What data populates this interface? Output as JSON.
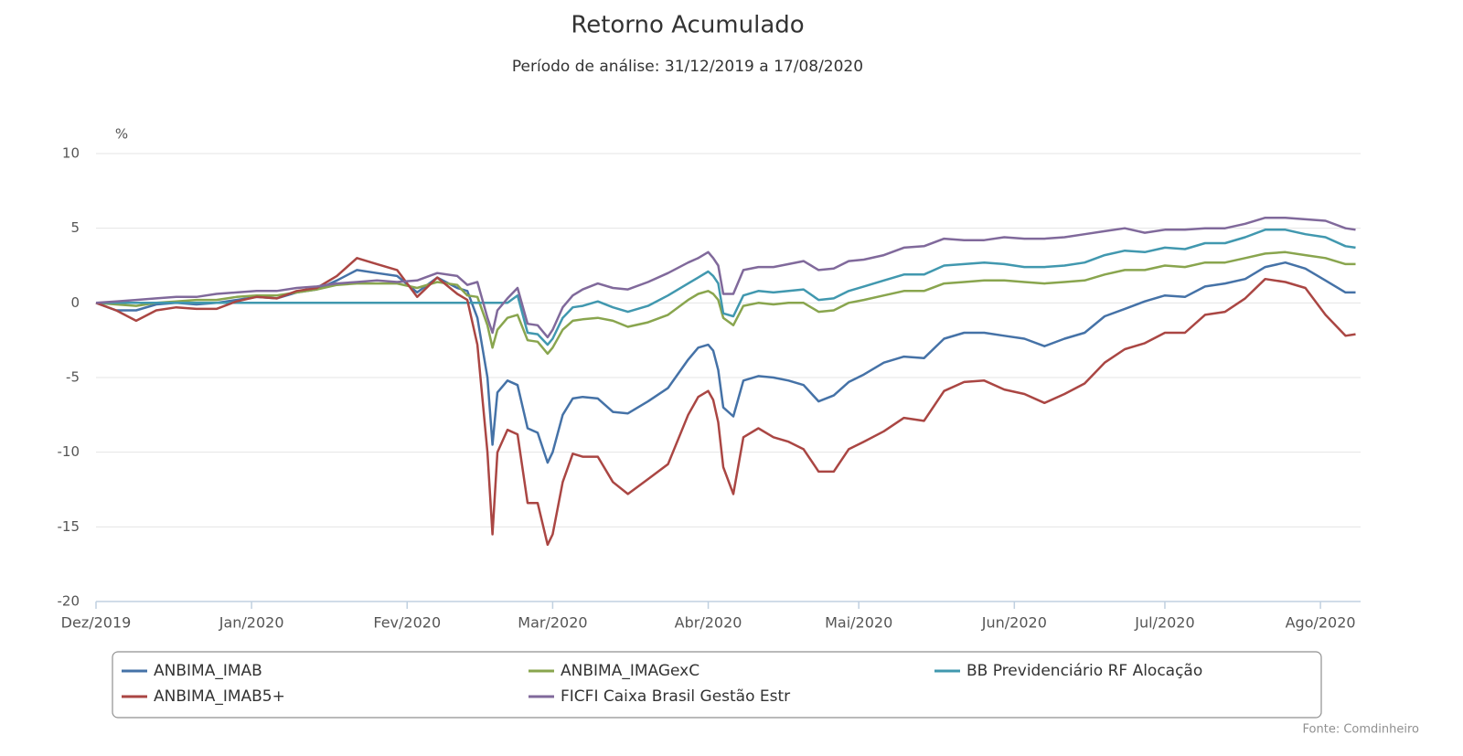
{
  "chart_data": {
    "type": "line",
    "title": "Retorno Acumulado",
    "subtitle": "Período de análise: 31/12/2019 a 17/08/2020",
    "y_label": "%",
    "source": "Fonte: Comdinheiro",
    "x": [
      0,
      4,
      8,
      12,
      16,
      20,
      24,
      28,
      32,
      36,
      40,
      44,
      48,
      52,
      56,
      60,
      64,
      68,
      72,
      74,
      76,
      78,
      79,
      80,
      82,
      84,
      86,
      88,
      90,
      91,
      93,
      95,
      97,
      100,
      103,
      106,
      110,
      114,
      118,
      120,
      122,
      123,
      124,
      125,
      127,
      129,
      132,
      135,
      138,
      141,
      144,
      147,
      150,
      153,
      157,
      161,
      165,
      169,
      173,
      177,
      181,
      185,
      189,
      193,
      197,
      201,
      205,
      209,
      213,
      217,
      221,
      225,
      229,
      233,
      237,
      241,
      245,
      249,
      251
    ],
    "xlim": [
      0,
      252
    ],
    "xticks": [
      {
        "value": 0,
        "label": "Dez/2019"
      },
      {
        "value": 31,
        "label": "Jan/2020"
      },
      {
        "value": 62,
        "label": "Fev/2020"
      },
      {
        "value": 91,
        "label": "Mar/2020"
      },
      {
        "value": 122,
        "label": "Abr/2020"
      },
      {
        "value": 152,
        "label": "Mai/2020"
      },
      {
        "value": 183,
        "label": "Jun/2020"
      },
      {
        "value": 213,
        "label": "Jul/2020"
      },
      {
        "value": 244,
        "label": "Ago/2020"
      }
    ],
    "ylim": [
      -20,
      10
    ],
    "yticks": [
      10,
      5,
      0,
      -5,
      -10,
      -15,
      -20
    ],
    "grid": true,
    "legend": "bottom",
    "series": [
      {
        "name": "ANBIMA_IMAB",
        "color": "#4572a7",
        "values": [
          0,
          -0.5,
          -0.5,
          -0.1,
          0,
          -0.1,
          0,
          0.2,
          0.4,
          0.3,
          0.7,
          0.9,
          1.5,
          2.2,
          2.0,
          1.8,
          0.7,
          1.7,
          1.0,
          0.8,
          -1.0,
          -5,
          -9.5,
          -6,
          -5.2,
          -5.5,
          -8.4,
          -8.7,
          -10.7,
          -10,
          -7.5,
          -6.4,
          -6.3,
          -6.4,
          -7.3,
          -7.4,
          -6.6,
          -5.7,
          -3.8,
          -3.0,
          -2.8,
          -3.2,
          -4.5,
          -7,
          -7.6,
          -5.2,
          -4.9,
          -5.0,
          -5.2,
          -5.5,
          -6.6,
          -6.2,
          -5.3,
          -4.8,
          -4.0,
          -3.6,
          -3.7,
          -2.4,
          -2.0,
          -2.0,
          -2.2,
          -2.4,
          -2.9,
          -2.4,
          -2.0,
          -0.9,
          -0.4,
          0.1,
          0.5,
          0.4,
          1.1,
          1.3,
          1.6,
          2.4,
          2.7,
          2.3,
          1.5,
          0.7,
          0.7
        ]
      },
      {
        "name": "ANBIMA_IMAGexC",
        "color": "#89a54e",
        "values": [
          0,
          -0.1,
          -0.2,
          0,
          0.1,
          0.2,
          0.2,
          0.4,
          0.5,
          0.5,
          0.7,
          0.9,
          1.2,
          1.3,
          1.3,
          1.3,
          1.0,
          1.4,
          1.2,
          0.5,
          0.4,
          -1.5,
          -3.0,
          -1.8,
          -1.0,
          -0.8,
          -2.5,
          -2.6,
          -3.4,
          -3.0,
          -1.8,
          -1.2,
          -1.1,
          -1.0,
          -1.2,
          -1.6,
          -1.3,
          -0.8,
          0.2,
          0.6,
          0.8,
          0.6,
          0.2,
          -1.0,
          -1.5,
          -0.2,
          0,
          -0.1,
          0,
          0,
          -0.6,
          -0.5,
          0,
          0.2,
          0.5,
          0.8,
          0.8,
          1.3,
          1.4,
          1.5,
          1.5,
          1.4,
          1.3,
          1.4,
          1.5,
          1.9,
          2.2,
          2.2,
          2.5,
          2.4,
          2.7,
          2.7,
          3.0,
          3.3,
          3.4,
          3.2,
          3.0,
          2.6,
          2.6
        ]
      },
      {
        "name": "BB Previdenciário RF Alocação",
        "color": "#4198af",
        "values": [
          0,
          0,
          0,
          0,
          0,
          0,
          0,
          0,
          0,
          0,
          0,
          0,
          0,
          0,
          0,
          0,
          0,
          0,
          0,
          0,
          0,
          0,
          0,
          0,
          0,
          0.5,
          -2,
          -2.1,
          -2.8,
          -2.4,
          -1.0,
          -0.3,
          -0.2,
          0.1,
          -0.3,
          -0.6,
          -0.2,
          0.5,
          1.3,
          1.7,
          2.1,
          1.8,
          1.3,
          -0.7,
          -0.9,
          0.5,
          0.8,
          0.7,
          0.8,
          0.9,
          0.2,
          0.3,
          0.8,
          1.1,
          1.5,
          1.9,
          1.9,
          2.5,
          2.6,
          2.7,
          2.6,
          2.4,
          2.4,
          2.5,
          2.7,
          3.2,
          3.5,
          3.4,
          3.7,
          3.6,
          4.0,
          4.0,
          4.4,
          4.9,
          4.9,
          4.6,
          4.4,
          3.8,
          3.7
        ]
      },
      {
        "name": "ANBIMA_IMAB5+",
        "color": "#aa4643",
        "values": [
          0,
          -0.5,
          -1.2,
          -0.5,
          -0.3,
          -0.4,
          -0.4,
          0.1,
          0.4,
          0.3,
          0.8,
          1.0,
          1.8,
          3.0,
          2.6,
          2.2,
          0.4,
          1.7,
          0.6,
          0.2,
          -2.8,
          -10,
          -15.5,
          -10,
          -8.5,
          -8.8,
          -13.4,
          -13.4,
          -16.2,
          -15.5,
          -12,
          -10.1,
          -10.3,
          -10.3,
          -12,
          -12.8,
          -11.8,
          -10.8,
          -7.5,
          -6.3,
          -5.9,
          -6.5,
          -8,
          -11,
          -12.8,
          -9,
          -8.4,
          -9,
          -9.3,
          -9.8,
          -11.3,
          -11.3,
          -9.8,
          -9.3,
          -8.6,
          -7.7,
          -7.9,
          -5.9,
          -5.3,
          -5.2,
          -5.8,
          -6.1,
          -6.7,
          -6.1,
          -5.4,
          -4,
          -3.1,
          -2.7,
          -2.0,
          -2.0,
          -0.8,
          -0.6,
          0.3,
          1.6,
          1.4,
          1.0,
          -0.8,
          -2.2,
          -2.1
        ]
      },
      {
        "name": "FICFI Caixa Brasil Gestão Estr",
        "color": "#80699b",
        "values": [
          0,
          0.1,
          0.2,
          0.3,
          0.4,
          0.4,
          0.6,
          0.7,
          0.8,
          0.8,
          1.0,
          1.1,
          1.3,
          1.4,
          1.5,
          1.4,
          1.5,
          2.0,
          1.8,
          1.2,
          1.4,
          -1.0,
          -2.0,
          -0.5,
          0.3,
          1.0,
          -1.4,
          -1.5,
          -2.3,
          -1.8,
          -0.3,
          0.5,
          0.9,
          1.3,
          1.0,
          0.9,
          1.4,
          2.0,
          2.7,
          3.0,
          3.4,
          3.0,
          2.5,
          0.6,
          0.6,
          2.2,
          2.4,
          2.4,
          2.6,
          2.8,
          2.2,
          2.3,
          2.8,
          2.9,
          3.2,
          3.7,
          3.8,
          4.3,
          4.2,
          4.2,
          4.4,
          4.3,
          4.3,
          4.4,
          4.6,
          4.8,
          5.0,
          4.7,
          4.9,
          4.9,
          5.0,
          5.0,
          5.3,
          5.7,
          5.7,
          5.6,
          5.5,
          5.0,
          4.9
        ]
      }
    ]
  }
}
